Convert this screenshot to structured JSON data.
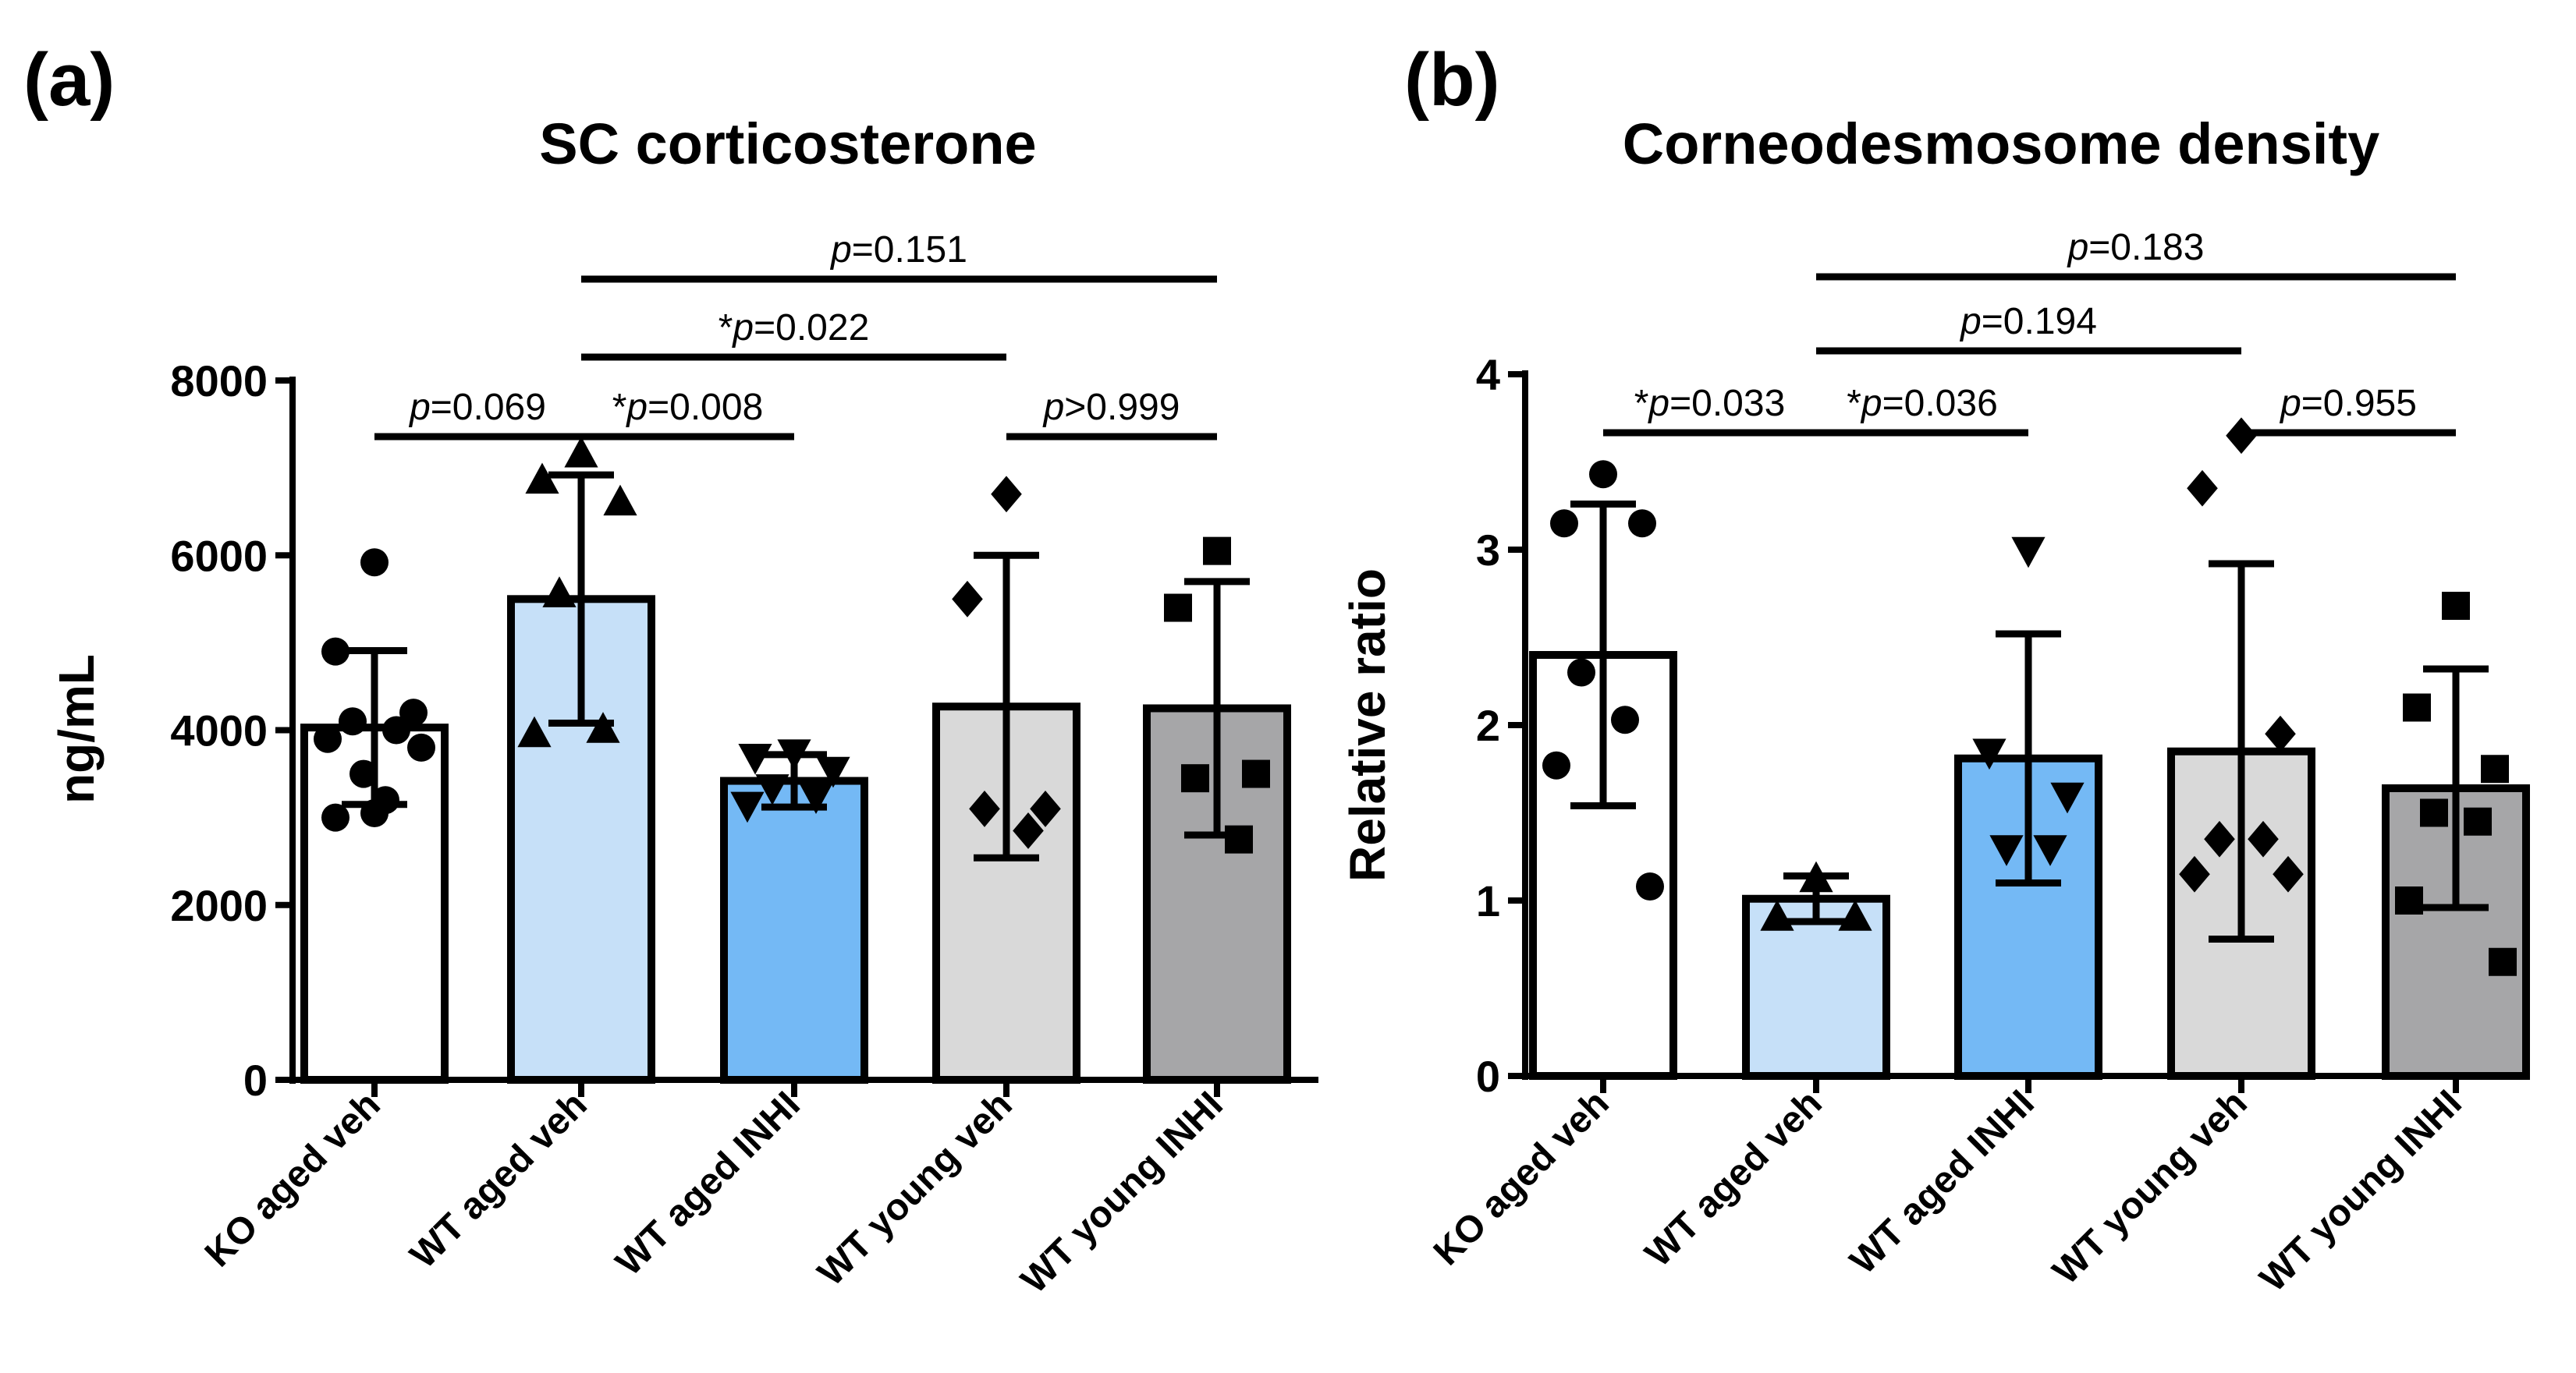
{
  "chart_data": [
    {
      "panel": "(a)",
      "type": "bar",
      "title": "SC corticosterone",
      "ylabel": "ng/mL",
      "xlabel": "",
      "ylim": [
        0,
        8000
      ],
      "yticks": [
        0,
        2000,
        4000,
        6000,
        8000
      ],
      "categories": [
        "KO aged veh",
        "WT aged veh",
        "WT aged INHI",
        "WT young veh",
        "WT young INHI"
      ],
      "colors": [
        "#ffffff",
        "#c6e0f8",
        "#74b9f5",
        "#d9d9d9",
        "#a6a6a8"
      ],
      "markers": [
        "circle",
        "triangle-up",
        "triangle-down",
        "diamond",
        "square"
      ],
      "values": [
        4030,
        5500,
        3420,
        4270,
        4250
      ],
      "sd": [
        880,
        1420,
        300,
        1730,
        1450
      ],
      "points": [
        [
          5920,
          4900,
          4200,
          4100,
          4000,
          3900,
          3800,
          3500,
          3200,
          3050,
          3000
        ],
        [
          7150,
          6850,
          6600,
          5550,
          4000,
          3950
        ],
        [
          3750,
          3700,
          3550,
          3350,
          3250,
          3150
        ],
        [
          6700,
          5500,
          3100,
          3100,
          2850
        ],
        [
          6050,
          5400,
          3500,
          3450,
          2750
        ]
      ],
      "comparisons": [
        {
          "from": 0,
          "to": 1,
          "label": "p=0.069",
          "star": false,
          "p": "p",
          "rest": "=0.069"
        },
        {
          "from": 1,
          "to": 2,
          "label": "*p=0.008",
          "star": true,
          "p": "p",
          "rest": "=0.008"
        },
        {
          "from": 3,
          "to": 4,
          "label": "p>0.999",
          "star": false,
          "p": "p",
          "rest": ">0.999"
        },
        {
          "from": 1,
          "to": 3,
          "label": "*p=0.022",
          "star": true,
          "p": "p",
          "rest": "=0.022"
        },
        {
          "from": 1,
          "to": 4,
          "label": "p=0.151",
          "star": false,
          "p": "p",
          "rest": "=0.151"
        }
      ]
    },
    {
      "panel": "(b)",
      "type": "bar",
      "title": "Corneodesmosome density",
      "ylabel": "Relative ratio",
      "xlabel": "",
      "ylim": [
        0,
        4
      ],
      "yticks": [
        0,
        1,
        2,
        3,
        4
      ],
      "categories": [
        "KO aged veh",
        "WT aged veh",
        "WT aged INHI",
        "WT young veh",
        "WT young INHI"
      ],
      "colors": [
        "#ffffff",
        "#c6e0f8",
        "#74b9f5",
        "#d9d9d9",
        "#a6a6a8"
      ],
      "markers": [
        "circle",
        "triangle-up",
        "triangle-down",
        "diamond",
        "square"
      ],
      "values": [
        2.4,
        1.01,
        1.81,
        1.85,
        1.64
      ],
      "sd": [
        0.86,
        0.13,
        0.71,
        1.07,
        0.68
      ],
      "points": [
        [
          3.43,
          3.15,
          3.15,
          2.3,
          2.03,
          1.77,
          1.08
        ],
        [
          1.12,
          0.9,
          0.9
        ],
        [
          3.0,
          1.85,
          1.6,
          1.3,
          1.3
        ],
        [
          3.65,
          3.35,
          1.95,
          1.35,
          1.35,
          1.15,
          1.15
        ],
        [
          2.68,
          2.1,
          1.75,
          1.5,
          1.45,
          1.0,
          0.65
        ]
      ],
      "comparisons": [
        {
          "from": 0,
          "to": 1,
          "label": "*p=0.033",
          "star": true,
          "p": "p",
          "rest": "=0.033"
        },
        {
          "from": 1,
          "to": 2,
          "label": "*p=0.036",
          "star": true,
          "p": "p",
          "rest": "=0.036"
        },
        {
          "from": 3,
          "to": 4,
          "label": "p=0.955",
          "star": false,
          "p": "p",
          "rest": "=0.955"
        },
        {
          "from": 1,
          "to": 3,
          "label": "p=0.194",
          "star": false,
          "p": "p",
          "rest": "=0.194"
        },
        {
          "from": 1,
          "to": 4,
          "label": "p=0.183",
          "star": false,
          "p": "p",
          "rest": "=0.183"
        }
      ]
    }
  ]
}
